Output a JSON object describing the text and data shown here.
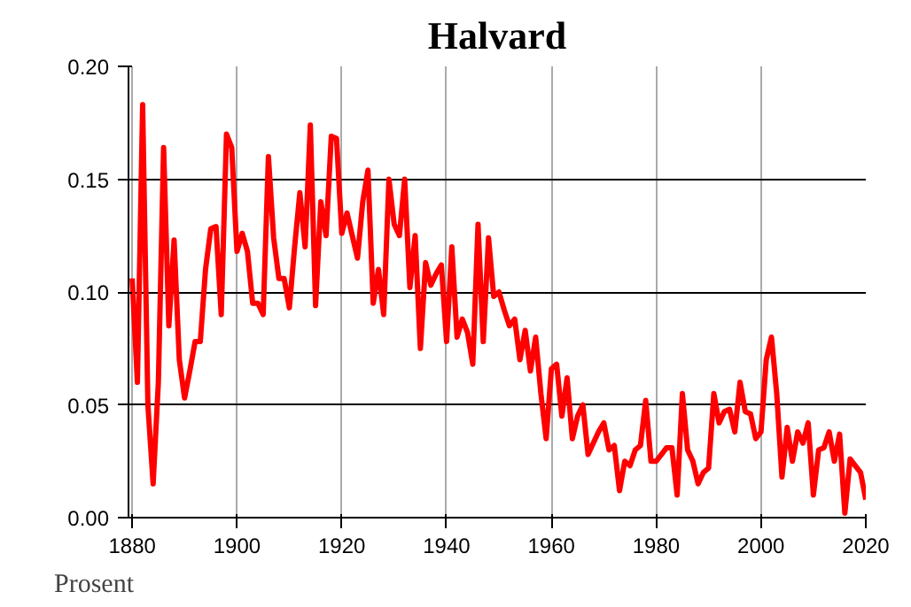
{
  "chart_data": {
    "type": "line",
    "title": "Halvard",
    "ylabel": "Prosent",
    "x": [
      1880,
      1881,
      1882,
      1883,
      1884,
      1885,
      1886,
      1887,
      1888,
      1889,
      1890,
      1891,
      1892,
      1893,
      1894,
      1895,
      1896,
      1897,
      1898,
      1899,
      1900,
      1901,
      1902,
      1903,
      1904,
      1905,
      1906,
      1907,
      1908,
      1909,
      1910,
      1911,
      1912,
      1913,
      1914,
      1915,
      1916,
      1917,
      1918,
      1919,
      1920,
      1921,
      1922,
      1923,
      1924,
      1925,
      1926,
      1927,
      1928,
      1929,
      1930,
      1931,
      1932,
      1933,
      1934,
      1935,
      1936,
      1937,
      1938,
      1939,
      1940,
      1941,
      1942,
      1943,
      1944,
      1945,
      1946,
      1947,
      1948,
      1949,
      1950,
      1951,
      1952,
      1953,
      1954,
      1955,
      1956,
      1957,
      1958,
      1959,
      1960,
      1961,
      1962,
      1963,
      1964,
      1965,
      1966,
      1967,
      1968,
      1969,
      1970,
      1971,
      1972,
      1973,
      1974,
      1975,
      1976,
      1977,
      1978,
      1979,
      1980,
      1981,
      1982,
      1983,
      1984,
      1985,
      1986,
      1987,
      1988,
      1989,
      1990,
      1991,
      1992,
      1993,
      1994,
      1995,
      1996,
      1997,
      1998,
      1999,
      2000,
      2001,
      2002,
      2003,
      2004,
      2005,
      2006,
      2007,
      2008,
      2009,
      2010,
      2011,
      2012,
      2013,
      2014,
      2015,
      2016,
      2017,
      2018,
      2019,
      2020
    ],
    "series": [
      {
        "color": "#ff0000",
        "values": [
          0.106,
          0.06,
          0.183,
          0.05,
          0.015,
          0.06,
          0.164,
          0.085,
          0.123,
          0.07,
          0.053,
          0.065,
          0.078,
          0.078,
          0.11,
          0.128,
          0.129,
          0.09,
          0.17,
          0.164,
          0.118,
          0.126,
          0.118,
          0.095,
          0.095,
          0.09,
          0.16,
          0.124,
          0.106,
          0.106,
          0.093,
          0.12,
          0.144,
          0.12,
          0.174,
          0.094,
          0.14,
          0.125,
          0.169,
          0.168,
          0.126,
          0.135,
          0.125,
          0.115,
          0.14,
          0.154,
          0.095,
          0.11,
          0.09,
          0.15,
          0.13,
          0.125,
          0.15,
          0.102,
          0.125,
          0.075,
          0.113,
          0.103,
          0.108,
          0.112,
          0.078,
          0.12,
          0.08,
          0.088,
          0.082,
          0.068,
          0.13,
          0.078,
          0.124,
          0.098,
          0.1,
          0.092,
          0.085,
          0.088,
          0.07,
          0.083,
          0.065,
          0.08,
          0.055,
          0.035,
          0.066,
          0.068,
          0.045,
          0.062,
          0.035,
          0.045,
          0.05,
          0.028,
          0.033,
          0.038,
          0.042,
          0.03,
          0.032,
          0.012,
          0.025,
          0.023,
          0.03,
          0.032,
          0.052,
          0.025,
          0.025,
          0.028,
          0.031,
          0.031,
          0.01,
          0.055,
          0.03,
          0.025,
          0.015,
          0.02,
          0.022,
          0.055,
          0.042,
          0.047,
          0.048,
          0.038,
          0.06,
          0.047,
          0.046,
          0.035,
          0.038,
          0.07,
          0.08,
          0.055,
          0.018,
          0.04,
          0.025,
          0.038,
          0.033,
          0.042,
          0.01,
          0.03,
          0.031,
          0.038,
          0.025,
          0.037,
          0.002,
          0.026,
          0.023,
          0.02,
          0.008
        ]
      }
    ],
    "xlim": [
      1879.3,
      2020
    ],
    "xticks": [
      1880,
      1900,
      1920,
      1940,
      1960,
      1980,
      2000,
      2020
    ],
    "ylim": [
      0,
      0.2
    ],
    "yticks": [
      {
        "value": 0,
        "label": "0.00"
      },
      {
        "value": 0.05,
        "label": "0.05"
      },
      {
        "value": 0.1,
        "label": "0.10"
      },
      {
        "value": 0.15,
        "label": "0.15"
      },
      {
        "value": 0.2,
        "label": "0.20"
      }
    ],
    "grid": true,
    "marker": "none",
    "line_style": "solid"
  }
}
